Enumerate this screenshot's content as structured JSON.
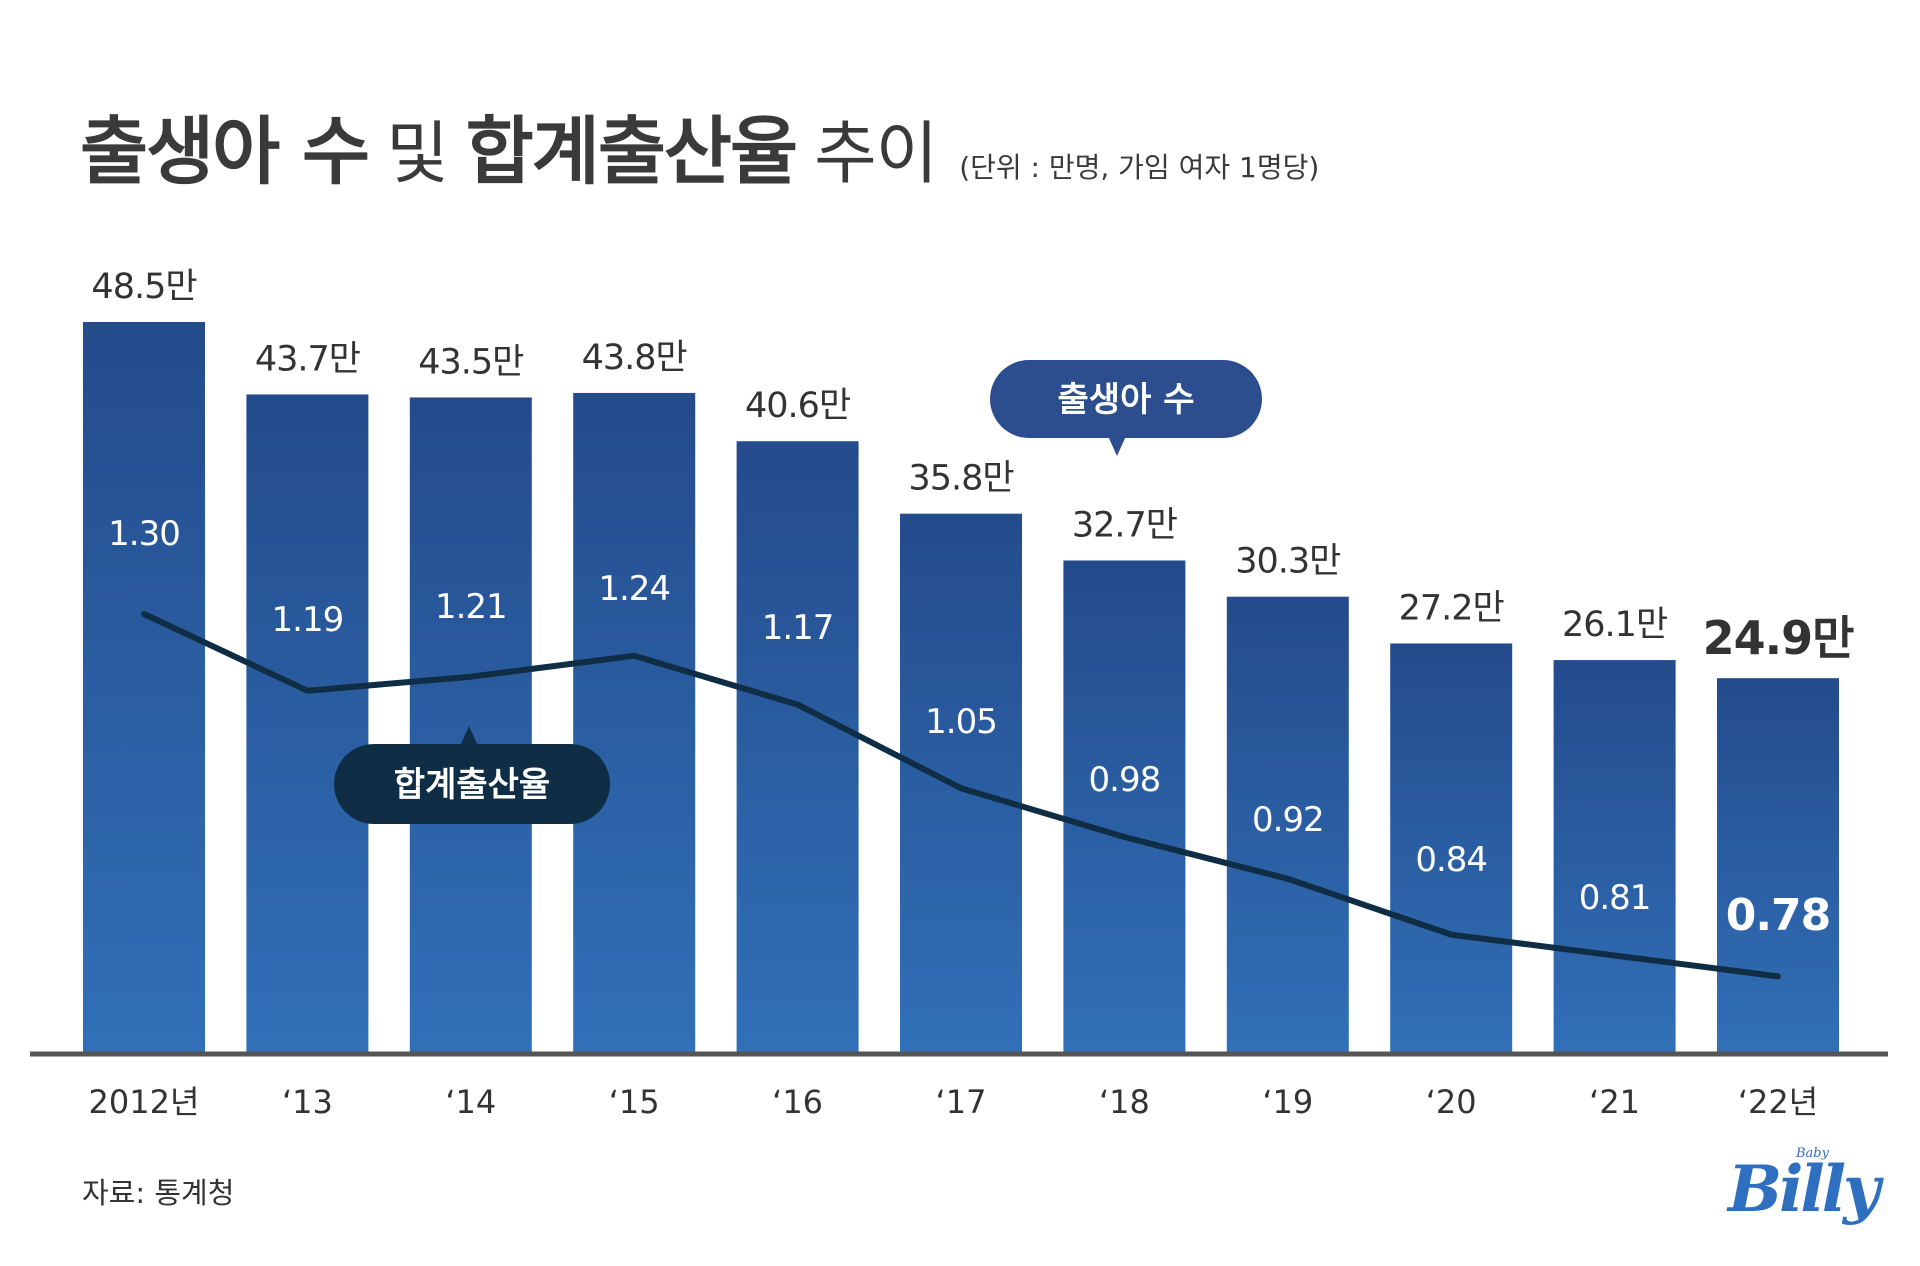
{
  "title": {
    "part1": "출생아 수",
    "part2": "및",
    "part3": "합계출산율",
    "part4": "추이",
    "unit": "(단위 : 만명, 가임 여자 1명당)"
  },
  "source": "자료: 통계청",
  "logo": {
    "sup": "Baby",
    "main": "Billy"
  },
  "colors": {
    "bar_top": "#244b8c",
    "bar_bottom": "#3170b8",
    "line": "#0f2e45",
    "callout_births": "#2c4e8f",
    "callout_rate": "#0f2e45",
    "axis": "#555555"
  },
  "chart_data": {
    "type": "bar",
    "categories": [
      "2012년",
      "‘13",
      "‘14",
      "‘15",
      "‘16",
      "‘17",
      "‘18",
      "‘19",
      "‘20",
      "‘21",
      "‘22년"
    ],
    "series": [
      {
        "name": "출생아 수",
        "type": "bar",
        "values": [
          48.5,
          43.7,
          43.5,
          43.8,
          40.6,
          35.8,
          32.7,
          30.3,
          27.2,
          26.1,
          24.9
        ],
        "labels": [
          "48.5만",
          "43.7만",
          "43.5만",
          "43.8만",
          "40.6만",
          "35.8만",
          "32.7만",
          "30.3만",
          "27.2만",
          "26.1만",
          "24.9만"
        ]
      },
      {
        "name": "합계출산율",
        "type": "line",
        "values": [
          1.3,
          1.19,
          1.21,
          1.24,
          1.17,
          1.05,
          0.98,
          0.92,
          0.84,
          0.81,
          0.78
        ],
        "labels": [
          "1.30",
          "1.19",
          "1.21",
          "1.24",
          "1.17",
          "1.05",
          "0.98",
          "0.92",
          "0.84",
          "0.81",
          "0.78"
        ]
      }
    ],
    "callouts": {
      "births": "출생아 수",
      "rate": "합계출산율"
    },
    "highlight_last": true,
    "grid": false,
    "legend": "none"
  }
}
